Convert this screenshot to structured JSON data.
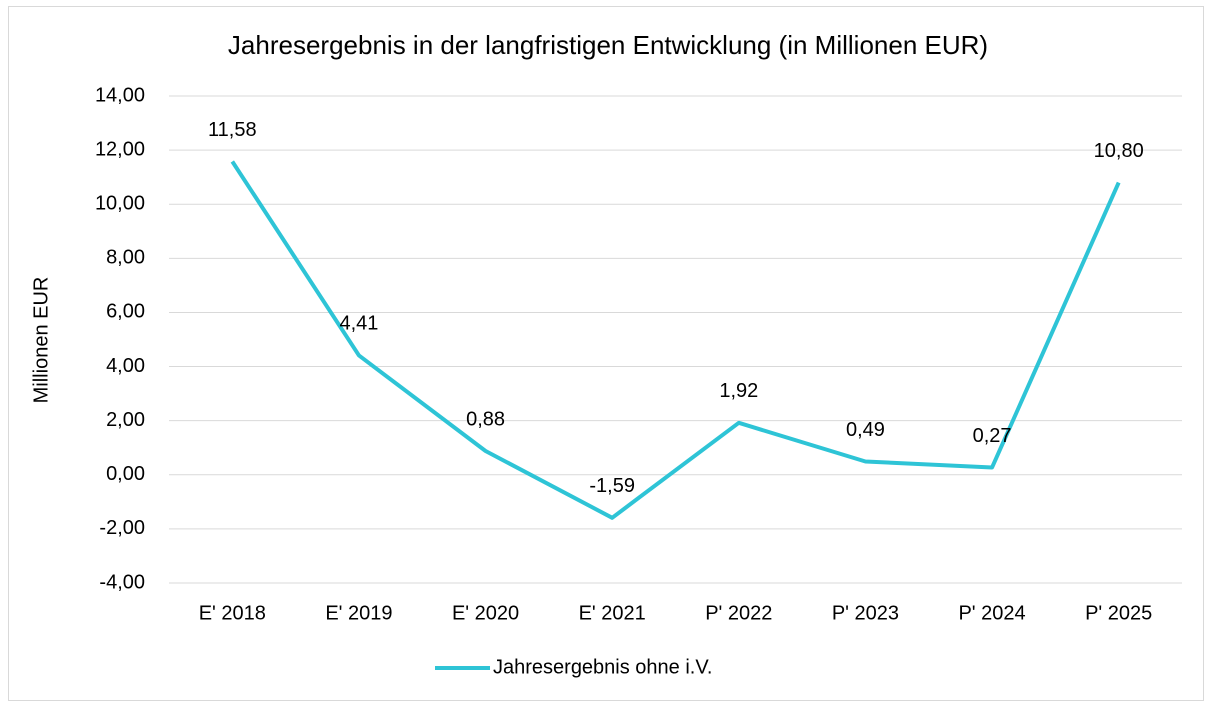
{
  "chart_data": {
    "type": "line",
    "title": "Jahresergebnis in der langfristigen Entwicklung (in Millionen EUR)",
    "y_label": "Millionen EUR",
    "categories": [
      "E' 2018",
      "E' 2019",
      "E' 2020",
      "E' 2021",
      "P' 2022",
      "P' 2023",
      "P' 2024",
      "P' 2025"
    ],
    "series": [
      {
        "name": "Jahresergebnis ohne i.V.",
        "color": "#2ec4d6",
        "values": [
          11.58,
          4.41,
          0.88,
          -1.59,
          1.92,
          0.49,
          0.27,
          10.8
        ],
        "value_labels": [
          "11,58",
          "4,41",
          "0,88",
          "-1,59",
          "1,92",
          "0,49",
          "0,27",
          "10,80"
        ]
      }
    ],
    "ylim": [
      -4,
      14
    ],
    "yticks": [
      {
        "value": -4,
        "label": "-4,00"
      },
      {
        "value": -2,
        "label": "-2,00"
      },
      {
        "value": 0,
        "label": "0,00"
      },
      {
        "value": 2,
        "label": "2,00"
      },
      {
        "value": 4,
        "label": "4,00"
      },
      {
        "value": 6,
        "label": "6,00"
      },
      {
        "value": 8,
        "label": "8,00"
      },
      {
        "value": 10,
        "label": "10,00"
      },
      {
        "value": 12,
        "label": "12,00"
      },
      {
        "value": 14,
        "label": "14,00"
      }
    ],
    "grid": true,
    "legend": "bottom"
  }
}
